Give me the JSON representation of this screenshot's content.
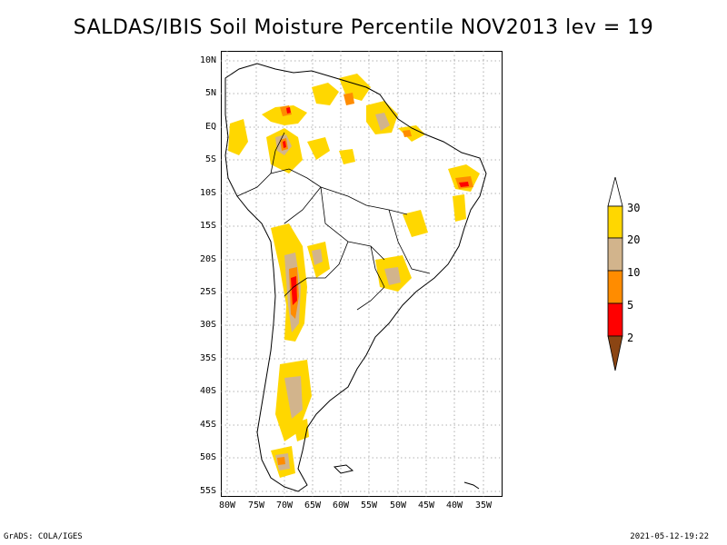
{
  "title": "SALDAS/IBIS Soil Moisture Percentile NOV2013 lev = 19",
  "map": {
    "lat_labels": [
      "10N",
      "5N",
      "EQ",
      "5S",
      "10S",
      "15S",
      "20S",
      "25S",
      "30S",
      "35S",
      "40S",
      "45S",
      "50S",
      "55S"
    ],
    "lon_labels": [
      "80W",
      "75W",
      "70W",
      "65W",
      "60W",
      "55W",
      "50W",
      "45W",
      "40W",
      "35W"
    ],
    "lat_range": [
      -56,
      11
    ],
    "lon_range": [
      -81,
      -33
    ]
  },
  "legend": {
    "labels": [
      "2",
      "5",
      "10",
      "20",
      "30"
    ],
    "colors": {
      "below_2": "#8B4513",
      "p2_5": "#FF0000",
      "p5_10": "#FF8C00",
      "p10_20": "#D2B48C",
      "p20_30": "#FFD700",
      "above_30": "#FFFFFF"
    }
  },
  "footer": {
    "left": "GrADS: COLA/IGES",
    "right": "2021-05-12-19:22"
  }
}
